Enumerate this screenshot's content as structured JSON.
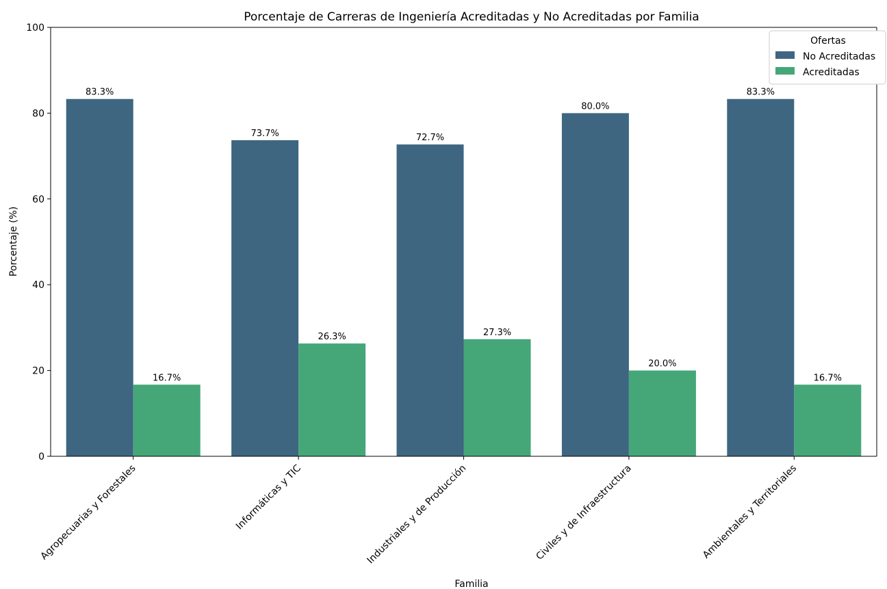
{
  "chart_data": {
    "type": "bar",
    "title": "Porcentaje de Carreras de Ingeniería Acreditadas y No Acreditadas por Familia",
    "xlabel": "Familia",
    "ylabel": "Porcentaje (%)",
    "ylim": [
      0,
      100
    ],
    "yticks": [
      0,
      20,
      40,
      60,
      80,
      100
    ],
    "categories": [
      "Agropecuarias y Forestales",
      "Informáticas y TIC",
      "Industriales y de Producción",
      "Civiles y de Infraestructura",
      "Ambientales y Territoriales"
    ],
    "series": [
      {
        "name": "No Acreditadas",
        "color": "#3e6681",
        "values": [
          83.3,
          73.7,
          72.7,
          80.0,
          83.3
        ],
        "labels": [
          "83.3%",
          "73.7%",
          "72.7%",
          "80.0%",
          "83.3%"
        ]
      },
      {
        "name": "Acreditadas",
        "color": "#45a778",
        "values": [
          16.7,
          26.3,
          27.3,
          20.0,
          16.7
        ],
        "labels": [
          "16.7%",
          "26.3%",
          "27.3%",
          "20.0%",
          "16.7%"
        ]
      }
    ],
    "legend": {
      "title": "Ofertas",
      "position": "top-right"
    },
    "grid": false
  }
}
